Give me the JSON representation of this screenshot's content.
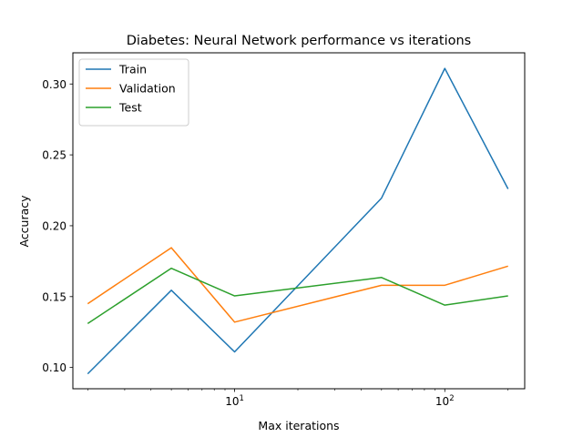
{
  "chart_data": {
    "type": "line",
    "title": "Diabetes: Neural Network performance vs iterations",
    "xlabel": "Max iterations",
    "ylabel": "Accuracy",
    "xscale": "log",
    "xlim": [
      1.7,
      240
    ],
    "ylim": [
      0.085,
      0.322
    ],
    "x": [
      2,
      5,
      10,
      50,
      100,
      200
    ],
    "xticks": [
      {
        "value": 10,
        "base": "10",
        "exp": "1"
      },
      {
        "value": 100,
        "base": "10",
        "exp": "2"
      }
    ],
    "yticks": [
      {
        "value": 0.1,
        "label": "0.10"
      },
      {
        "value": 0.15,
        "label": "0.15"
      },
      {
        "value": 0.2,
        "label": "0.20"
      },
      {
        "value": 0.25,
        "label": "0.25"
      },
      {
        "value": 0.3,
        "label": "0.30"
      }
    ],
    "grid": false,
    "legend_position": "top-left",
    "series": [
      {
        "name": "Train",
        "color": "#1f77b4",
        "values": [
          0.0955,
          0.1545,
          0.111,
          0.2195,
          0.311,
          0.226
        ]
      },
      {
        "name": "Validation",
        "color": "#ff7f0e",
        "values": [
          0.145,
          0.1845,
          0.132,
          0.158,
          0.158,
          0.1715
        ]
      },
      {
        "name": "Test",
        "color": "#2ca02c",
        "values": [
          0.131,
          0.17,
          0.1505,
          0.1635,
          0.144,
          0.1505
        ]
      }
    ]
  }
}
